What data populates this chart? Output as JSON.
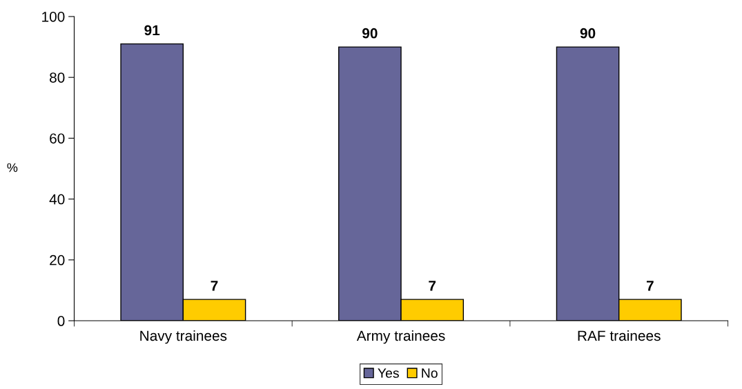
{
  "chart_data": {
    "type": "bar",
    "ylabel": "%",
    "categories": [
      "Navy trainees",
      "Army trainees",
      "RAF trainees"
    ],
    "series": [
      {
        "name": "Yes",
        "color": "#666699",
        "values": [
          91,
          90,
          90
        ]
      },
      {
        "name": "No",
        "color": "#ffcc00",
        "values": [
          7,
          7,
          7
        ]
      }
    ],
    "ylim": [
      0,
      100
    ],
    "yticks": [
      0,
      20,
      40,
      60,
      80,
      100
    ],
    "data_labels": true,
    "grid": false,
    "legend": "bottom"
  }
}
